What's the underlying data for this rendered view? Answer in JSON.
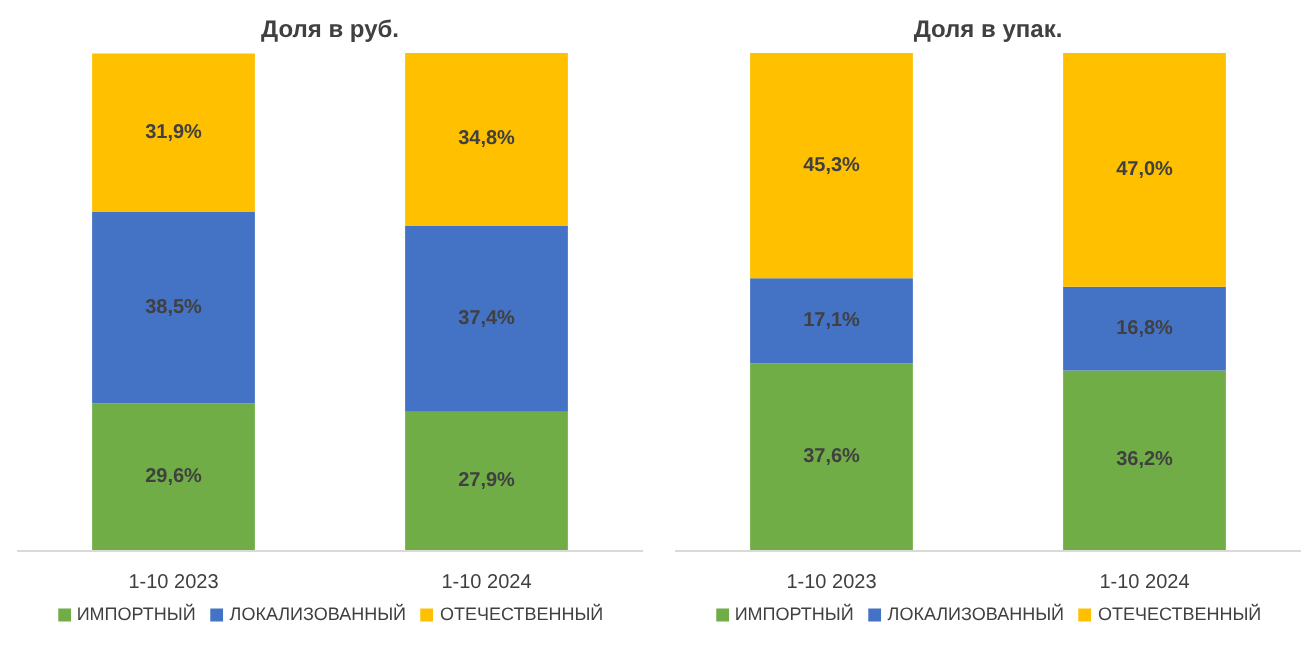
{
  "chart_data": [
    {
      "type": "bar",
      "title": "Доля в руб.",
      "categories": [
        "1-10 2023",
        "1-10 2024"
      ],
      "stacked": true,
      "data_labels": true,
      "legend": "bottom",
      "series": [
        {
          "name": "ИМПОРТНЫЙ",
          "color": "#70ad47",
          "values": [
            29.6,
            27.9
          ],
          "value_labels": [
            "29,6%",
            "27,9%"
          ]
        },
        {
          "name": "ЛОКАЛИЗОВАННЫЙ",
          "color": "#4472c4",
          "values": [
            38.5,
            37.4
          ],
          "value_labels": [
            "38,5%",
            "37,4%"
          ]
        },
        {
          "name": "ОТЕЧЕСТВЕННЫЙ",
          "color": "#ffc000",
          "values": [
            31.9,
            34.8
          ],
          "value_labels": [
            "31,9%",
            "34,8%"
          ]
        }
      ]
    },
    {
      "type": "bar",
      "title": "Доля в упак.",
      "categories": [
        "1-10 2023",
        "1-10 2024"
      ],
      "stacked": true,
      "data_labels": true,
      "legend": "bottom",
      "series": [
        {
          "name": "ИМПОРТНЫЙ",
          "color": "#70ad47",
          "values": [
            37.6,
            36.2
          ],
          "value_labels": [
            "37,6%",
            "36,2%"
          ]
        },
        {
          "name": "ЛОКАЛИЗОВАННЫЙ",
          "color": "#4472c4",
          "values": [
            17.1,
            16.8
          ],
          "value_labels": [
            "17,1%",
            "16,8%"
          ]
        },
        {
          "name": "ОТЕЧЕСТВЕННЫЙ",
          "color": "#ffc000",
          "values": [
            45.3,
            47.0
          ],
          "value_labels": [
            "45,3%",
            "47,0%"
          ]
        }
      ]
    }
  ]
}
